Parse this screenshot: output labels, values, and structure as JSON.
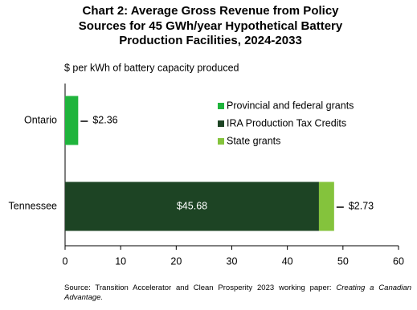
{
  "chart_data": {
    "type": "stacked-barh",
    "title": [
      "Chart 2: Average Gross Revenue from Policy",
      "Sources for 45 GWh/year Hypothetical Battery",
      "Production Facilities, 2024-2033"
    ],
    "subtitle": "$ per kWh of battery capacity produced",
    "categories": [
      "Ontario",
      "Tennessee"
    ],
    "series": [
      {
        "name": "Provincial and federal grants",
        "color": "#1fb43c",
        "values": [
          2.36,
          null
        ],
        "value_labels": [
          "$2.36",
          null
        ]
      },
      {
        "name": "IRA Production Tax Credits",
        "color": "#1d4424",
        "values": [
          null,
          45.68
        ],
        "value_labels": [
          null,
          "$45.68"
        ]
      },
      {
        "name": "State grants",
        "color": "#84c33c",
        "values": [
          null,
          2.73
        ],
        "value_labels": [
          null,
          "$2.73"
        ]
      }
    ],
    "xlim": [
      0,
      60
    ],
    "xticks": [
      0,
      10,
      20,
      30,
      40,
      50,
      60
    ],
    "grid": false,
    "source": {
      "text": "Source: Transition Accelerator and Clean Prosperity 2023 working paper: ",
      "italic": "Creating a Canadian Advantage."
    }
  }
}
